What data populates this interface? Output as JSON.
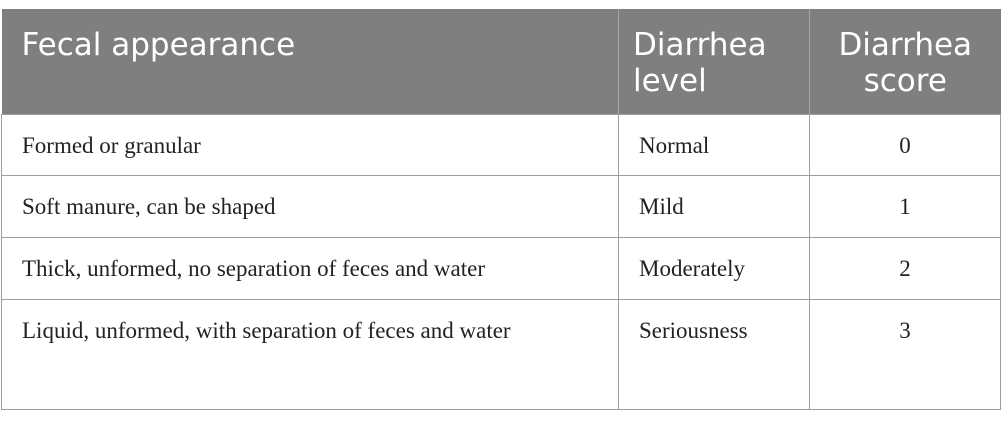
{
  "table": {
    "headers": {
      "appearance": "Fecal appearance",
      "level_line1": "Diarrhea",
      "level_line2": "level",
      "score_line1": "Diarrhea",
      "score_line2": "score"
    },
    "rows": [
      {
        "appearance": "Formed or granular",
        "level": "Normal",
        "score": "0"
      },
      {
        "appearance": "Soft manure, can be shaped",
        "level": "Mild",
        "score": "1"
      },
      {
        "appearance": "Thick, unformed, no separation of feces and water",
        "level": "Moderately",
        "score": "2"
      },
      {
        "appearance": "Liquid, unformed, with separation of feces and water",
        "level": "Seriousness",
        "score": "3"
      }
    ]
  }
}
